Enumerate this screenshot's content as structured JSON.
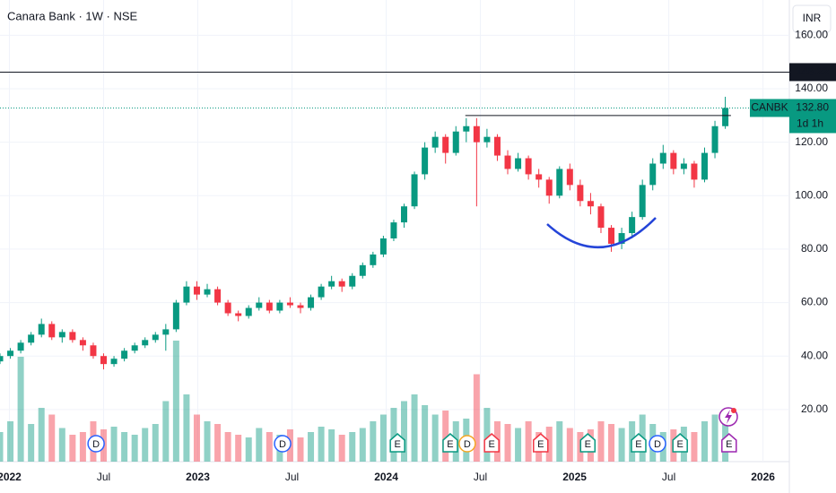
{
  "chart_data": {
    "type": "candlestick",
    "title": "Canara Bank · 1W · NSE",
    "currency": "INR",
    "symbol": "CANBK",
    "countdown": "1d 1h",
    "xlim": [
      2021.95,
      2026.14
    ],
    "xticks": [
      2022,
      {
        "value": 2022.5,
        "label": "Jul"
      },
      2023,
      {
        "value": 2023.5,
        "label": "Jul"
      },
      2024,
      {
        "value": 2024.5,
        "label": "Jul"
      },
      2025,
      {
        "value": 2025.5,
        "label": "Jul"
      },
      2026
    ],
    "ylim": [
      0.5,
      173.2
    ],
    "yticks": [
      {
        "value": 20,
        "label": "20.00"
      },
      {
        "value": 40,
        "label": "40.00"
      },
      {
        "value": 60,
        "label": "60.00"
      },
      {
        "value": 80,
        "label": "80.00"
      },
      {
        "value": 100,
        "label": "100.00"
      },
      {
        "value": 120,
        "label": "120.00"
      },
      {
        "value": 140,
        "label": "140.00"
      },
      {
        "value": 160,
        "label": "160.00"
      }
    ],
    "grid": true,
    "up_color": "#089981",
    "down_color": "#f23645",
    "x": [
      2021.95,
      2022.005,
      2022.06,
      2022.115,
      2022.17,
      2022.225,
      2022.28,
      2022.335,
      2022.39,
      2022.445,
      2022.5,
      2022.555,
      2022.61,
      2022.665,
      2022.72,
      2022.775,
      2022.83,
      2022.885,
      2022.94,
      2022.995,
      2023.05,
      2023.105,
      2023.16,
      2023.215,
      2023.27,
      2023.325,
      2023.38,
      2023.435,
      2023.49,
      2023.545,
      2023.6,
      2023.655,
      2023.71,
      2023.765,
      2023.82,
      2023.875,
      2023.93,
      2023.985,
      2024.04,
      2024.095,
      2024.15,
      2024.205,
      2024.26,
      2024.315,
      2024.37,
      2024.425,
      2024.48,
      2024.535,
      2024.59,
      2024.645,
      2024.7,
      2024.755,
      2024.81,
      2024.865,
      2024.92,
      2024.975,
      2025.03,
      2025.085,
      2025.14,
      2025.195,
      2025.25,
      2025.305,
      2025.36,
      2025.415,
      2025.47,
      2025.525,
      2025.58,
      2025.635,
      2025.69,
      2025.745,
      2025.8
    ],
    "ohlc": [
      [
        38,
        41,
        37,
        40
      ],
      [
        40,
        43,
        39,
        42
      ],
      [
        42,
        46,
        41,
        45
      ],
      [
        45,
        49,
        44,
        48
      ],
      [
        48,
        54,
        47,
        52
      ],
      [
        52,
        53,
        46,
        47
      ],
      [
        47,
        50,
        45,
        49
      ],
      [
        49,
        50,
        45,
        46
      ],
      [
        46,
        47,
        42,
        44
      ],
      [
        44,
        45,
        39,
        40
      ],
      [
        40,
        41,
        35,
        37
      ],
      [
        37,
        40,
        36,
        39
      ],
      [
        39,
        43,
        38,
        42
      ],
      [
        42,
        45,
        41,
        44
      ],
      [
        44,
        47,
        43,
        46
      ],
      [
        46,
        49,
        45,
        48
      ],
      [
        48,
        52,
        42,
        50
      ],
      [
        50,
        61,
        49,
        60
      ],
      [
        60,
        68,
        59,
        66
      ],
      [
        66,
        68,
        61,
        63
      ],
      [
        63,
        67,
        62,
        65
      ],
      [
        65,
        66,
        59,
        60
      ],
      [
        60,
        61,
        55,
        56
      ],
      [
        56,
        57,
        53,
        55
      ],
      [
        55,
        59,
        54,
        58
      ],
      [
        58,
        62,
        57,
        60
      ],
      [
        60,
        61,
        56,
        57
      ],
      [
        57,
        61,
        56,
        60
      ],
      [
        60,
        62,
        58,
        59
      ],
      [
        59,
        60,
        56,
        58
      ],
      [
        58,
        63,
        57,
        62
      ],
      [
        62,
        67,
        61,
        66
      ],
      [
        66,
        70,
        65,
        68
      ],
      [
        68,
        69,
        64,
        66
      ],
      [
        66,
        71,
        65,
        70
      ],
      [
        70,
        75,
        69,
        74
      ],
      [
        74,
        79,
        73,
        78
      ],
      [
        78,
        85,
        77,
        84
      ],
      [
        84,
        91,
        83,
        90
      ],
      [
        90,
        97,
        88,
        96
      ],
      [
        96,
        109,
        95,
        108
      ],
      [
        108,
        120,
        106,
        118
      ],
      [
        118,
        124,
        116,
        122
      ],
      [
        122,
        123,
        112,
        116
      ],
      [
        116,
        126,
        115,
        124
      ],
      [
        124,
        129,
        120,
        126
      ],
      [
        126,
        129,
        96,
        120
      ],
      [
        120,
        125,
        118,
        122
      ],
      [
        122,
        123,
        113,
        115
      ],
      [
        115,
        117,
        108,
        110
      ],
      [
        110,
        116,
        109,
        114
      ],
      [
        114,
        115,
        106,
        108
      ],
      [
        108,
        110,
        103,
        106
      ],
      [
        106,
        107,
        97,
        100
      ],
      [
        100,
        111,
        99,
        110
      ],
      [
        110,
        112,
        102,
        104
      ],
      [
        104,
        106,
        96,
        98
      ],
      [
        98,
        101,
        93,
        96
      ],
      [
        96,
        97,
        86,
        88
      ],
      [
        88,
        89,
        79,
        82
      ],
      [
        82,
        88,
        80,
        86
      ],
      [
        86,
        94,
        84,
        92
      ],
      [
        92,
        106,
        91,
        104
      ],
      [
        104,
        114,
        102,
        112
      ],
      [
        112,
        119,
        110,
        116
      ],
      [
        116,
        117,
        108,
        110
      ],
      [
        110,
        114,
        108,
        112
      ],
      [
        112,
        113,
        103,
        106
      ],
      [
        106,
        118,
        105,
        116
      ],
      [
        116,
        128,
        114,
        126
      ],
      [
        126,
        137,
        125,
        132.8
      ]
    ],
    "vlim": [
      0,
      100
    ],
    "volume": [
      22,
      30,
      78,
      28,
      40,
      35,
      25,
      20,
      22,
      30,
      24,
      26,
      22,
      20,
      25,
      28,
      45,
      90,
      50,
      35,
      30,
      28,
      22,
      20,
      18,
      25,
      22,
      20,
      24,
      18,
      22,
      26,
      24,
      20,
      22,
      25,
      30,
      35,
      40,
      45,
      50,
      42,
      35,
      38,
      30,
      32,
      65,
      40,
      30,
      28,
      25,
      30,
      22,
      26,
      30,
      25,
      22,
      24,
      30,
      28,
      25,
      30,
      35,
      28,
      22,
      24,
      26,
      22,
      30,
      35,
      28
    ],
    "price_line": 146.22,
    "last_price": {
      "value": 132.8,
      "label": "132.80"
    },
    "resistance": {
      "value": 130,
      "x": [
        2024.42,
        2025.83
      ]
    },
    "events": [
      {
        "x": 2022.46,
        "label": "D",
        "color": "#2962ff"
      },
      {
        "x": 2023.45,
        "label": "D",
        "color": "#2962ff"
      },
      {
        "x": 2024.06,
        "label": "E",
        "color": "#089981"
      },
      {
        "x": 2024.34,
        "label": "E",
        "color": "#089981"
      },
      {
        "x": 2024.43,
        "label": "D",
        "color": "#f5a623"
      },
      {
        "x": 2024.56,
        "label": "E",
        "color": "#f23645"
      },
      {
        "x": 2024.82,
        "label": "E",
        "color": "#f23645"
      },
      {
        "x": 2025.07,
        "label": "E",
        "color": "#089981"
      },
      {
        "x": 2025.34,
        "label": "E",
        "color": "#089981"
      },
      {
        "x": 2025.44,
        "label": "D",
        "color": "#2962ff"
      },
      {
        "x": 2025.56,
        "label": "E",
        "color": "#089981"
      },
      {
        "x": 2025.82,
        "label": "E",
        "color": "#9c27b0"
      }
    ]
  }
}
